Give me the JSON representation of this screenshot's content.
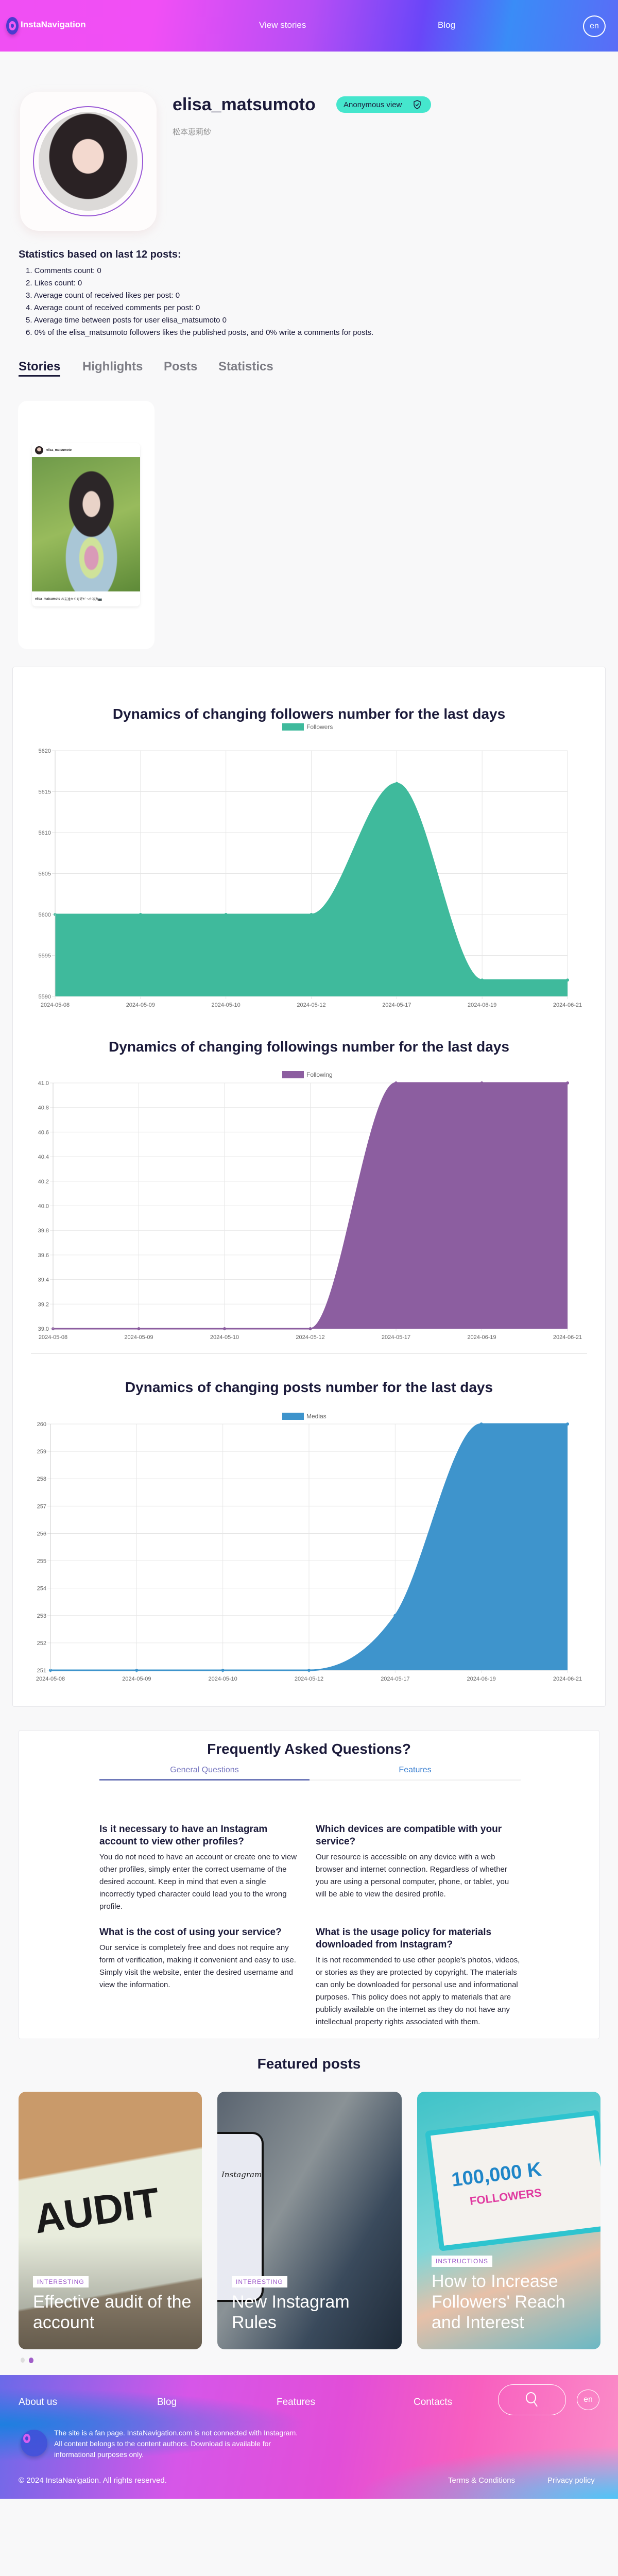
{
  "header": {
    "brand": "InstaNavigation",
    "nav": [
      "View stories",
      "Blog"
    ],
    "lang": "en"
  },
  "profile": {
    "username": "elisa_matsumoto",
    "full_name": "松本恵莉紗",
    "badge": "Anonymous view"
  },
  "stats": {
    "heading": "Statistics based on last 12 posts:",
    "items": [
      "1. Comments count: 0",
      "2. Likes count: 0",
      "3. Average count of received likes per post: 0",
      "4. Average count of received comments per post: 0",
      "5. Average time between posts for user elisa_matsumoto 0",
      "6. 0% of the elisa_matsumoto followers likes the published posts, and 0% write a comments for posts."
    ]
  },
  "tabs": [
    "Stories",
    "Highlights",
    "Posts",
    "Statistics"
  ],
  "story": {
    "username": "elisa_matsumoto",
    "caption_user": "elisa_matsumoto",
    "caption": "お友達から好評だった写真📷"
  },
  "chart_data": [
    {
      "type": "area",
      "title": "Dynamics of changing followers number for the last days",
      "legend": "Followers",
      "color": "#3fba9c",
      "x": [
        "2024-05-08",
        "2024-05-09",
        "2024-05-10",
        "2024-05-12",
        "2024-05-17",
        "2024-06-19",
        "2024-06-21"
      ],
      "values": [
        5600,
        5600,
        5600,
        5600,
        5616,
        5592,
        5592
      ],
      "ylim": [
        5590,
        5620
      ],
      "ystep": 5,
      "ydec": 0,
      "legend_position": "top",
      "grid": true
    },
    {
      "type": "area",
      "title": "Dynamics of changing followings number for the last days",
      "legend": "Following",
      "color": "#8c5ea0",
      "x": [
        "2024-05-08",
        "2024-05-09",
        "2024-05-10",
        "2024-05-12",
        "2024-05-17",
        "2024-06-19",
        "2024-06-21"
      ],
      "values": [
        39,
        39,
        39,
        39,
        41,
        41,
        41
      ],
      "ylim": [
        39,
        41
      ],
      "ystep": 0.2,
      "ydec": 1,
      "legend_position": "top",
      "grid": true
    },
    {
      "type": "area",
      "title": "Dynamics of changing posts number for the last days",
      "legend": "Medias",
      "color": "#3e94cc",
      "x": [
        "2024-05-08",
        "2024-05-09",
        "2024-05-10",
        "2024-05-12",
        "2024-05-17",
        "2024-06-19",
        "2024-06-21"
      ],
      "values": [
        251,
        251,
        251,
        251,
        253,
        260,
        260
      ],
      "ylim": [
        251,
        260
      ],
      "ystep": 1,
      "ydec": 0,
      "legend_position": "top",
      "grid": true
    }
  ],
  "faq": {
    "title": "Frequently Asked Questions?",
    "tabs": [
      "General Questions",
      "Features"
    ],
    "items": [
      {
        "q": "Is it necessary to have an Instagram account to view other profiles?",
        "a": "You do not need to have an account or create one to view other profiles, simply enter the correct username of the desired account. Keep in mind that even a single incorrectly typed character could lead you to the wrong profile."
      },
      {
        "q": "Which devices are compatible with your service?",
        "a": "Our resource is accessible on any device with a web browser and internet connection. Regardless of whether you are using a personal computer, phone, or tablet, you will be able to view the desired profile."
      },
      {
        "q": "What is the cost of using your service?",
        "a": "Our service is completely free and does not require any form of verification, making it convenient and easy to use. Simply visit the website, enter the desired username and view the information."
      },
      {
        "q": "What is the usage policy for materials downloaded from Instagram?",
        "a": "It is not recommended to use other people's photos, videos, or stories as they are protected by copyright. The materials can only be downloaded for personal use and informational purposes. This policy does not apply to materials that are publicly available on the internet as they do not have any intellectual property rights associated with them."
      }
    ]
  },
  "featured": {
    "title": "Featured posts",
    "posts": [
      {
        "tag": "INTERESTING",
        "title": "Effective audit of the account",
        "image_text": "AUDIT"
      },
      {
        "tag": "INTERESTING",
        "title": "New Instagram Rules",
        "image_text": "Instagram"
      },
      {
        "tag": "INSTRUCTIONS",
        "title": "How to Increase Followers' Reach and Interest",
        "image_text": "100,000 K",
        "image_text2": "FOLLOWERS"
      }
    ]
  },
  "footer": {
    "nav": [
      "About us",
      "Blog",
      "Features",
      "Contacts"
    ],
    "lang": "en",
    "disclaimer": "The site is a fan page. InstaNavigation.com is not connected with Instagram. All content belongs to the content authors. Download is available for informational purposes only.",
    "copyright": "© 2024 InstaNavigation. All rights reserved.",
    "links": [
      "Terms & Conditions",
      "Privacy policy"
    ]
  },
  "colors": {
    "accent": "#45e6cd",
    "brand": "#f04ff3",
    "text": "#1b1a3a"
  }
}
